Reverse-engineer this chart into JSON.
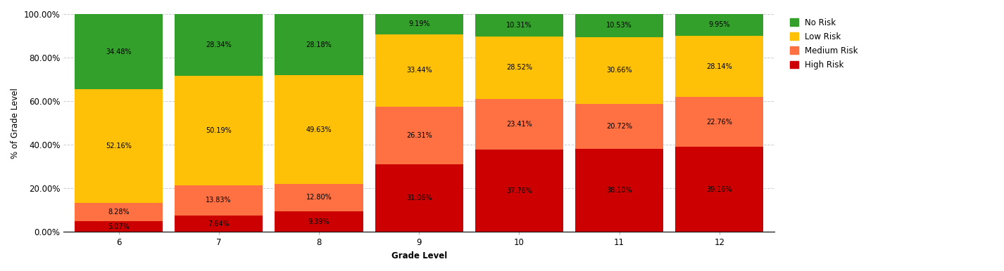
{
  "grades": [
    "6",
    "7",
    "8",
    "9",
    "10",
    "11",
    "12"
  ],
  "high_risk": [
    5.07,
    7.64,
    9.39,
    31.06,
    37.76,
    38.1,
    39.16
  ],
  "medium_risk": [
    8.28,
    13.83,
    12.8,
    26.31,
    23.41,
    20.72,
    22.76
  ],
  "low_risk": [
    52.16,
    50.19,
    49.63,
    33.44,
    28.52,
    30.66,
    28.14
  ],
  "no_risk": [
    34.48,
    28.34,
    28.18,
    9.19,
    10.31,
    10.53,
    9.95
  ],
  "colors": {
    "high_risk": "#cc0000",
    "medium_risk": "#ff7043",
    "low_risk": "#ffc107",
    "no_risk": "#33a02c"
  },
  "ylabel": "% of Grade Level",
  "xlabel": "Grade Level",
  "yticks": [
    0,
    20,
    40,
    60,
    80,
    100
  ],
  "ytick_labels": [
    "0.00%",
    "20.00%",
    "40.00%",
    "60.00%",
    "80.00%",
    "100.00%"
  ],
  "legend_labels": [
    "No Risk",
    "Low Risk",
    "Medium Risk",
    "High Risk"
  ],
  "background_color": "#ffffff",
  "grid_color": "#cccccc",
  "bar_width": 0.88,
  "label_fontsize": 7.0,
  "axis_fontsize": 8.5,
  "legend_fontsize": 8.5
}
